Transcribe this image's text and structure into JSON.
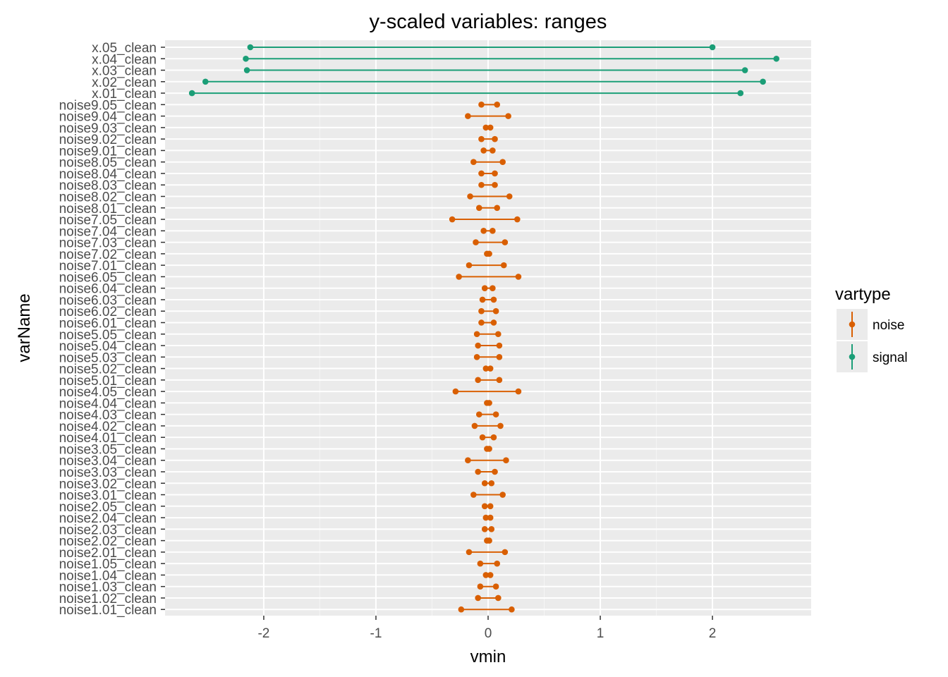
{
  "chart_data": {
    "type": "range",
    "title": "y-scaled variables: ranges",
    "xlabel": "vmin",
    "ylabel": "varName",
    "xlim": [
      -2.88,
      2.88
    ],
    "xticks": [
      -2,
      -1,
      0,
      1,
      2
    ],
    "xtick_labels": [
      "-2",
      "-1",
      "0",
      "1",
      "2"
    ],
    "grid": true,
    "legend": {
      "title": "vartype",
      "placement": "right",
      "entries": [
        {
          "name": "noise",
          "color": "#D95F02"
        },
        {
          "name": "signal",
          "color": "#1B9E77"
        }
      ]
    },
    "rows": [
      {
        "name": "x.05_clean",
        "vartype": "signal",
        "vmin": -2.12,
        "vmax": 2.0
      },
      {
        "name": "x.04_clean",
        "vartype": "signal",
        "vmin": -2.16,
        "vmax": 2.57
      },
      {
        "name": "x.03_clean",
        "vartype": "signal",
        "vmin": -2.15,
        "vmax": 2.29
      },
      {
        "name": "x.02_clean",
        "vartype": "signal",
        "vmin": -2.52,
        "vmax": 2.45
      },
      {
        "name": "x.01_clean",
        "vartype": "signal",
        "vmin": -2.64,
        "vmax": 2.25
      },
      {
        "name": "noise9.05_clean",
        "vartype": "noise",
        "vmin": -0.06,
        "vmax": 0.08
      },
      {
        "name": "noise9.04_clean",
        "vartype": "noise",
        "vmin": -0.18,
        "vmax": 0.18
      },
      {
        "name": "noise9.03_clean",
        "vartype": "noise",
        "vmin": -0.02,
        "vmax": 0.02
      },
      {
        "name": "noise9.02_clean",
        "vartype": "noise",
        "vmin": -0.06,
        "vmax": 0.06
      },
      {
        "name": "noise9.01_clean",
        "vartype": "noise",
        "vmin": -0.04,
        "vmax": 0.04
      },
      {
        "name": "noise8.05_clean",
        "vartype": "noise",
        "vmin": -0.13,
        "vmax": 0.13
      },
      {
        "name": "noise8.04_clean",
        "vartype": "noise",
        "vmin": -0.06,
        "vmax": 0.06
      },
      {
        "name": "noise8.03_clean",
        "vartype": "noise",
        "vmin": -0.06,
        "vmax": 0.06
      },
      {
        "name": "noise8.02_clean",
        "vartype": "noise",
        "vmin": -0.16,
        "vmax": 0.19
      },
      {
        "name": "noise8.01_clean",
        "vartype": "noise",
        "vmin": -0.08,
        "vmax": 0.08
      },
      {
        "name": "noise7.05_clean",
        "vartype": "noise",
        "vmin": -0.32,
        "vmax": 0.26
      },
      {
        "name": "noise7.04_clean",
        "vartype": "noise",
        "vmin": -0.04,
        "vmax": 0.04
      },
      {
        "name": "noise7.03_clean",
        "vartype": "noise",
        "vmin": -0.11,
        "vmax": 0.15
      },
      {
        "name": "noise7.02_clean",
        "vartype": "noise",
        "vmin": -0.01,
        "vmax": 0.01
      },
      {
        "name": "noise7.01_clean",
        "vartype": "noise",
        "vmin": -0.17,
        "vmax": 0.14
      },
      {
        "name": "noise6.05_clean",
        "vartype": "noise",
        "vmin": -0.26,
        "vmax": 0.27
      },
      {
        "name": "noise6.04_clean",
        "vartype": "noise",
        "vmin": -0.03,
        "vmax": 0.04
      },
      {
        "name": "noise6.03_clean",
        "vartype": "noise",
        "vmin": -0.05,
        "vmax": 0.05
      },
      {
        "name": "noise6.02_clean",
        "vartype": "noise",
        "vmin": -0.06,
        "vmax": 0.07
      },
      {
        "name": "noise6.01_clean",
        "vartype": "noise",
        "vmin": -0.06,
        "vmax": 0.05
      },
      {
        "name": "noise5.05_clean",
        "vartype": "noise",
        "vmin": -0.1,
        "vmax": 0.09
      },
      {
        "name": "noise5.04_clean",
        "vartype": "noise",
        "vmin": -0.09,
        "vmax": 0.1
      },
      {
        "name": "noise5.03_clean",
        "vartype": "noise",
        "vmin": -0.1,
        "vmax": 0.1
      },
      {
        "name": "noise5.02_clean",
        "vartype": "noise",
        "vmin": -0.02,
        "vmax": 0.02
      },
      {
        "name": "noise5.01_clean",
        "vartype": "noise",
        "vmin": -0.09,
        "vmax": 0.1
      },
      {
        "name": "noise4.05_clean",
        "vartype": "noise",
        "vmin": -0.29,
        "vmax": 0.27
      },
      {
        "name": "noise4.04_clean",
        "vartype": "noise",
        "vmin": -0.01,
        "vmax": 0.01
      },
      {
        "name": "noise4.03_clean",
        "vartype": "noise",
        "vmin": -0.08,
        "vmax": 0.07
      },
      {
        "name": "noise4.02_clean",
        "vartype": "noise",
        "vmin": -0.12,
        "vmax": 0.11
      },
      {
        "name": "noise4.01_clean",
        "vartype": "noise",
        "vmin": -0.05,
        "vmax": 0.05
      },
      {
        "name": "noise3.05_clean",
        "vartype": "noise",
        "vmin": -0.01,
        "vmax": 0.01
      },
      {
        "name": "noise3.04_clean",
        "vartype": "noise",
        "vmin": -0.18,
        "vmax": 0.16
      },
      {
        "name": "noise3.03_clean",
        "vartype": "noise",
        "vmin": -0.09,
        "vmax": 0.06
      },
      {
        "name": "noise3.02_clean",
        "vartype": "noise",
        "vmin": -0.03,
        "vmax": 0.03
      },
      {
        "name": "noise3.01_clean",
        "vartype": "noise",
        "vmin": -0.13,
        "vmax": 0.13
      },
      {
        "name": "noise2.05_clean",
        "vartype": "noise",
        "vmin": -0.03,
        "vmax": 0.02
      },
      {
        "name": "noise2.04_clean",
        "vartype": "noise",
        "vmin": -0.02,
        "vmax": 0.02
      },
      {
        "name": "noise2.03_clean",
        "vartype": "noise",
        "vmin": -0.03,
        "vmax": 0.03
      },
      {
        "name": "noise2.02_clean",
        "vartype": "noise",
        "vmin": -0.01,
        "vmax": 0.01
      },
      {
        "name": "noise2.01_clean",
        "vartype": "noise",
        "vmin": -0.17,
        "vmax": 0.15
      },
      {
        "name": "noise1.05_clean",
        "vartype": "noise",
        "vmin": -0.07,
        "vmax": 0.08
      },
      {
        "name": "noise1.04_clean",
        "vartype": "noise",
        "vmin": -0.02,
        "vmax": 0.02
      },
      {
        "name": "noise1.03_clean",
        "vartype": "noise",
        "vmin": -0.07,
        "vmax": 0.07
      },
      {
        "name": "noise1.02_clean",
        "vartype": "noise",
        "vmin": -0.09,
        "vmax": 0.09
      },
      {
        "name": "noise1.01_clean",
        "vartype": "noise",
        "vmin": -0.24,
        "vmax": 0.21
      }
    ]
  }
}
